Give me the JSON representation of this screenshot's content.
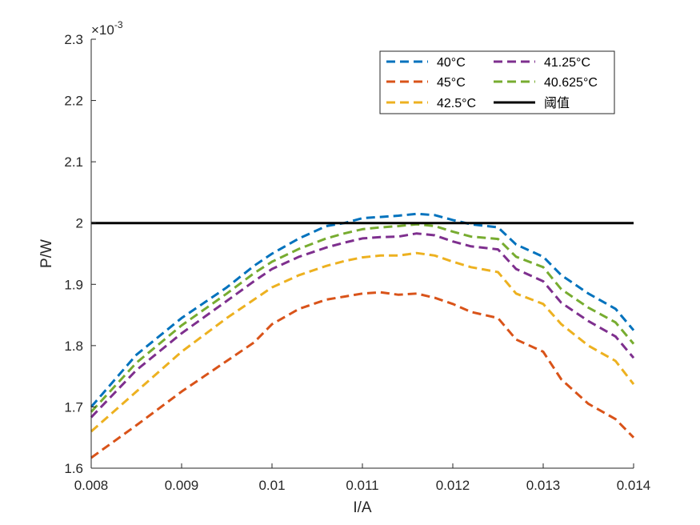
{
  "chart_data": {
    "type": "line",
    "xlabel": "I/A",
    "ylabel": "P/W",
    "xlim": [
      0.008,
      0.014
    ],
    "ylim": [
      1.6,
      2.3
    ],
    "y_exponent_label": "×10",
    "y_exponent_power": "-3",
    "xticks": [
      "0.008",
      "0.009",
      "0.01",
      "0.011",
      "0.012",
      "0.013",
      "0.014"
    ],
    "yticks": [
      "1.6",
      "1.7",
      "1.8",
      "1.9",
      "2",
      "2.1",
      "2.2",
      "2.3"
    ],
    "grid": false,
    "legend_position": "top-right",
    "x": [
      0.008,
      0.0085,
      0.009,
      0.0095,
      0.0098,
      0.01,
      0.0103,
      0.0106,
      0.0108,
      0.011,
      0.0112,
      0.0114,
      0.0116,
      0.0118,
      0.012,
      0.0122,
      0.0125,
      0.0127,
      0.013,
      0.0132,
      0.0135,
      0.0138,
      0.014
    ],
    "series": [
      {
        "name": "40°C",
        "color": "#0072BD",
        "dash": true,
        "values": [
          1.7,
          1.785,
          1.845,
          1.895,
          1.93,
          1.95,
          1.975,
          1.995,
          2.0,
          2.008,
          2.01,
          2.012,
          2.015,
          2.013,
          2.005,
          1.998,
          1.993,
          1.965,
          1.945,
          1.915,
          1.885,
          1.86,
          1.825
        ]
      },
      {
        "name": "45°C",
        "color": "#D95319",
        "dash": true,
        "values": [
          1.617,
          1.67,
          1.725,
          1.775,
          1.805,
          1.835,
          1.86,
          1.875,
          1.88,
          1.885,
          1.887,
          1.883,
          1.885,
          1.878,
          1.868,
          1.855,
          1.845,
          1.81,
          1.79,
          1.745,
          1.705,
          1.68,
          1.65
        ]
      },
      {
        "name": "42.5°C",
        "color": "#EDB120",
        "dash": true,
        "values": [
          1.66,
          1.725,
          1.79,
          1.845,
          1.875,
          1.895,
          1.915,
          1.93,
          1.938,
          1.944,
          1.947,
          1.947,
          1.951,
          1.947,
          1.937,
          1.928,
          1.92,
          1.885,
          1.868,
          1.835,
          1.8,
          1.775,
          1.737
        ]
      },
      {
        "name": "41.25°C",
        "color": "#7E2F8E",
        "dash": true,
        "values": [
          1.683,
          1.76,
          1.82,
          1.873,
          1.905,
          1.925,
          1.945,
          1.96,
          1.968,
          1.975,
          1.977,
          1.978,
          1.983,
          1.98,
          1.97,
          1.962,
          1.957,
          1.925,
          1.905,
          1.87,
          1.84,
          1.815,
          1.78
        ]
      },
      {
        "name": "40.625°C",
        "color": "#77AC30",
        "dash": true,
        "values": [
          1.692,
          1.772,
          1.833,
          1.885,
          1.918,
          1.937,
          1.958,
          1.975,
          1.983,
          1.99,
          1.993,
          1.995,
          1.998,
          1.995,
          1.986,
          1.978,
          1.974,
          1.945,
          1.928,
          1.892,
          1.862,
          1.838,
          1.803
        ]
      },
      {
        "name": "阈值",
        "color": "#000000",
        "dash": false,
        "values": [
          2.0,
          2.0,
          2.0,
          2.0,
          2.0,
          2.0,
          2.0,
          2.0,
          2.0,
          2.0,
          2.0,
          2.0,
          2.0,
          2.0,
          2.0,
          2.0,
          2.0,
          2.0,
          2.0,
          2.0,
          2.0,
          2.0,
          2.0
        ]
      }
    ],
    "legend_order": [
      0,
      3,
      1,
      4,
      2,
      5
    ]
  }
}
